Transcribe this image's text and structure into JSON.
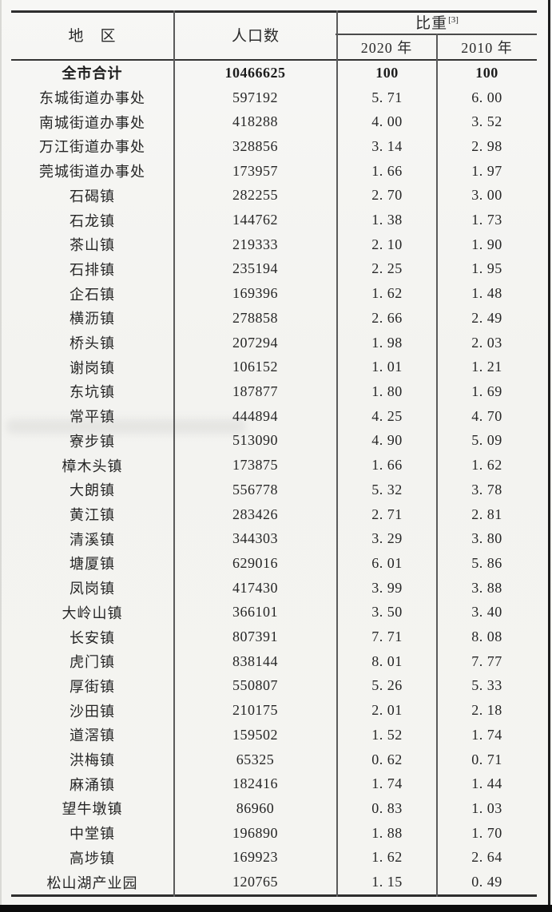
{
  "document": {
    "kind": "scanned census table page",
    "colors": {
      "paper": "#f4f4f1",
      "ink": "#262626",
      "rule_heavy": "#2e2e2e",
      "rule_light": "#5a5a5a",
      "scan_edge": "#1d1d1d"
    }
  },
  "table": {
    "header": {
      "region": "地　区",
      "population": "人口数",
      "share": "比重",
      "share_footnote": "[3]",
      "year_2020": "2020 年",
      "year_2010": "2010 年"
    },
    "rows": [
      {
        "region": "全市合计",
        "population": "10466625",
        "s2020": "100",
        "s2010": "100",
        "bold": true
      },
      {
        "region": "东城街道办事处",
        "population": "597192",
        "s2020": "5. 71",
        "s2010": "6. 00"
      },
      {
        "region": "南城街道办事处",
        "population": "418288",
        "s2020": "4. 00",
        "s2010": "3. 52"
      },
      {
        "region": "万江街道办事处",
        "population": "328856",
        "s2020": "3. 14",
        "s2010": "2. 98"
      },
      {
        "region": "莞城街道办事处",
        "population": "173957",
        "s2020": "1. 66",
        "s2010": "1. 97"
      },
      {
        "region": "石碣镇",
        "population": "282255",
        "s2020": "2. 70",
        "s2010": "3. 00"
      },
      {
        "region": "石龙镇",
        "population": "144762",
        "s2020": "1. 38",
        "s2010": "1. 73"
      },
      {
        "region": "茶山镇",
        "population": "219333",
        "s2020": "2. 10",
        "s2010": "1. 90"
      },
      {
        "region": "石排镇",
        "population": "235194",
        "s2020": "2. 25",
        "s2010": "1. 95"
      },
      {
        "region": "企石镇",
        "population": "169396",
        "s2020": "1. 62",
        "s2010": "1. 48"
      },
      {
        "region": "横沥镇",
        "population": "278858",
        "s2020": "2. 66",
        "s2010": "2. 49"
      },
      {
        "region": "桥头镇",
        "population": "207294",
        "s2020": "1. 98",
        "s2010": "2. 03"
      },
      {
        "region": "谢岗镇",
        "population": "106152",
        "s2020": "1. 01",
        "s2010": "1. 21"
      },
      {
        "region": "东坑镇",
        "population": "187877",
        "s2020": "1. 80",
        "s2010": "1. 69"
      },
      {
        "region": "常平镇",
        "population": "444894",
        "s2020": "4. 25",
        "s2010": "4. 70"
      },
      {
        "region": "寮步镇",
        "population": "513090",
        "s2020": "4. 90",
        "s2010": "5. 09"
      },
      {
        "region": "樟木头镇",
        "population": "173875",
        "s2020": "1. 66",
        "s2010": "1. 62"
      },
      {
        "region": "大朗镇",
        "population": "556778",
        "s2020": "5. 32",
        "s2010": "3. 78"
      },
      {
        "region": "黄江镇",
        "population": "283426",
        "s2020": "2. 71",
        "s2010": "2. 81"
      },
      {
        "region": "清溪镇",
        "population": "344303",
        "s2020": "3. 29",
        "s2010": "3. 80"
      },
      {
        "region": "塘厦镇",
        "population": "629016",
        "s2020": "6. 01",
        "s2010": "5. 86"
      },
      {
        "region": "凤岗镇",
        "population": "417430",
        "s2020": "3. 99",
        "s2010": "3. 88"
      },
      {
        "region": "大岭山镇",
        "population": "366101",
        "s2020": "3. 50",
        "s2010": "3. 40"
      },
      {
        "region": "长安镇",
        "population": "807391",
        "s2020": "7. 71",
        "s2010": "8. 08"
      },
      {
        "region": "虎门镇",
        "population": "838144",
        "s2020": "8. 01",
        "s2010": "7. 77"
      },
      {
        "region": "厚街镇",
        "population": "550807",
        "s2020": "5. 26",
        "s2010": "5. 33"
      },
      {
        "region": "沙田镇",
        "population": "210175",
        "s2020": "2. 01",
        "s2010": "2. 18"
      },
      {
        "region": "道滘镇",
        "population": "159502",
        "s2020": "1. 52",
        "s2010": "1. 74"
      },
      {
        "region": "洪梅镇",
        "population": "65325",
        "s2020": "0. 62",
        "s2010": "0. 71"
      },
      {
        "region": "麻涌镇",
        "population": "182416",
        "s2020": "1. 74",
        "s2010": "1. 44"
      },
      {
        "region": "望牛墩镇",
        "population": "86960",
        "s2020": "0. 83",
        "s2010": "1. 03"
      },
      {
        "region": "中堂镇",
        "population": "196890",
        "s2020": "1. 88",
        "s2010": "1. 70"
      },
      {
        "region": "高埗镇",
        "population": "169923",
        "s2020": "1. 62",
        "s2010": "2. 64"
      },
      {
        "region": "松山湖产业园",
        "population": "120765",
        "s2020": "1. 15",
        "s2010": "0. 49"
      }
    ]
  }
}
